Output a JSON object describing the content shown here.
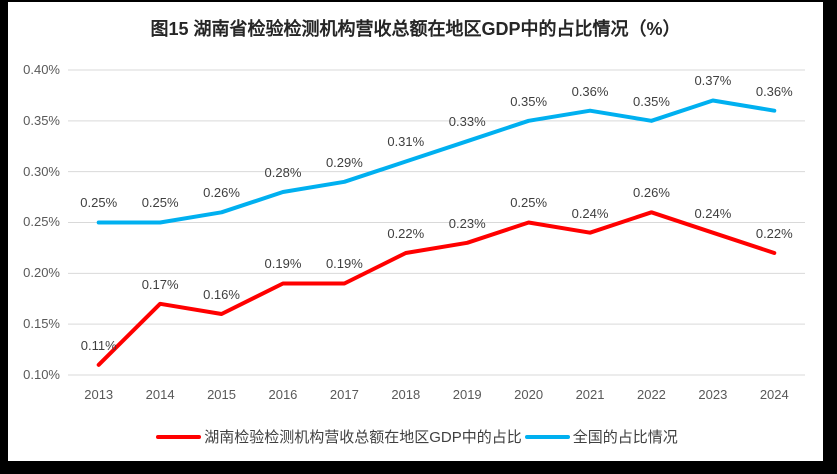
{
  "title": "图15 湖南省检验检测机构营收总额在地区GDP中的占比情况（%）",
  "chart_data": {
    "type": "line",
    "categories": [
      "2013",
      "2014",
      "2015",
      "2016",
      "2017",
      "2018",
      "2019",
      "2020",
      "2021",
      "2022",
      "2023",
      "2024"
    ],
    "series": [
      {
        "name": "湖南检验检测机构营收总额在地区GDP中的占比",
        "color": "#FF0000",
        "values": [
          0.11,
          0.17,
          0.16,
          0.19,
          0.19,
          0.22,
          0.23,
          0.25,
          0.24,
          0.26,
          0.24,
          0.22
        ],
        "labels": [
          "0.11%",
          "0.17%",
          "0.16%",
          "0.19%",
          "0.19%",
          "0.22%",
          "0.23%",
          "0.25%",
          "0.24%",
          "0.26%",
          "0.24%",
          "0.22%"
        ]
      },
      {
        "name": "全国的占比情况",
        "color": "#00B0F0",
        "values": [
          0.25,
          0.25,
          0.26,
          0.28,
          0.29,
          0.31,
          0.33,
          0.35,
          0.36,
          0.35,
          0.37,
          0.36
        ],
        "labels": [
          "0.25%",
          "0.25%",
          "0.26%",
          "0.28%",
          "0.29%",
          "0.31%",
          "0.33%",
          "0.35%",
          "0.36%",
          "0.35%",
          "0.37%",
          "0.36%"
        ]
      }
    ],
    "xlabel": "",
    "ylabel": "",
    "ylim": [
      0.1,
      0.4
    ],
    "ytick_step": 0.05,
    "yticks": [
      "0.10%",
      "0.15%",
      "0.20%",
      "0.25%",
      "0.30%",
      "0.35%",
      "0.40%"
    ],
    "grid": true,
    "legend_position": "bottom",
    "data_labels_shown": true
  },
  "style": {
    "grid_color": "#D9D9D9",
    "tick_color": "#595959",
    "data_label_color": "#3f3f3f",
    "title_color": "#262626",
    "frame_color": "#000000",
    "background": "#FFFFFF",
    "line_width": 4
  }
}
